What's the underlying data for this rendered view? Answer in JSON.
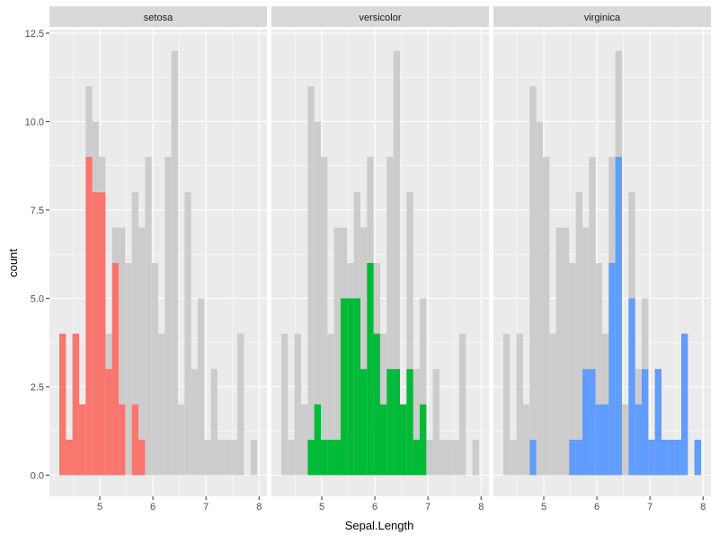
{
  "chart_data": {
    "type": "bar",
    "subtype": "faceted histogram with full-data background",
    "xlabel": "Sepal.Length",
    "ylabel": "count",
    "xlim": [
      4.052,
      8.148
    ],
    "ylim": [
      -0.6,
      12.6
    ],
    "x_ticks": [
      5,
      6,
      7,
      8
    ],
    "x_tick_labels": [
      "5",
      "6",
      "7",
      "8"
    ],
    "y_ticks": [
      0,
      2.5,
      5,
      7.5,
      10,
      12.5
    ],
    "y_tick_labels": [
      "0.0",
      "2.5",
      "5.0",
      "7.5",
      "10.0",
      "12.5"
    ],
    "grid": true,
    "bin_centers": [
      4.3,
      4.424,
      4.548,
      4.672,
      4.797,
      4.921,
      5.045,
      5.169,
      5.293,
      5.417,
      5.541,
      5.666,
      5.79,
      5.914,
      6.038,
      6.162,
      6.286,
      6.41,
      6.534,
      6.659,
      6.783,
      6.907,
      7.031,
      7.155,
      7.279,
      7.403,
      7.528,
      7.652,
      7.776,
      7.9
    ],
    "background_series": {
      "color": "#CCCCCC",
      "values": [
        4,
        1,
        4,
        2,
        11,
        10,
        9,
        4,
        7,
        7,
        6,
        8,
        7,
        9,
        6,
        4,
        9,
        12,
        2,
        8,
        3,
        5,
        1,
        3,
        1,
        1,
        1,
        4,
        0,
        1
      ]
    },
    "facets": [
      {
        "label": "setosa",
        "color": "#F8766D",
        "values": [
          4,
          1,
          4,
          2,
          9,
          8,
          8,
          3,
          6,
          2,
          0,
          2,
          1,
          0,
          0,
          0,
          0,
          0,
          0,
          0,
          0,
          0,
          0,
          0,
          0,
          0,
          0,
          0,
          0,
          0
        ]
      },
      {
        "label": "versicolor",
        "color": "#00BA38",
        "values": [
          0,
          0,
          0,
          0,
          1,
          2,
          1,
          1,
          1,
          5,
          5,
          5,
          3,
          6,
          4,
          2,
          3,
          3,
          2,
          3,
          1,
          2,
          0,
          0,
          0,
          0,
          0,
          0,
          0,
          0
        ]
      },
      {
        "label": "virginica",
        "color": "#619CFF",
        "values": [
          0,
          0,
          0,
          0,
          1,
          0,
          0,
          0,
          0,
          0,
          1,
          1,
          3,
          3,
          2,
          2,
          6,
          9,
          0,
          5,
          2,
          3,
          1,
          3,
          1,
          1,
          1,
          4,
          0,
          1
        ]
      }
    ]
  }
}
